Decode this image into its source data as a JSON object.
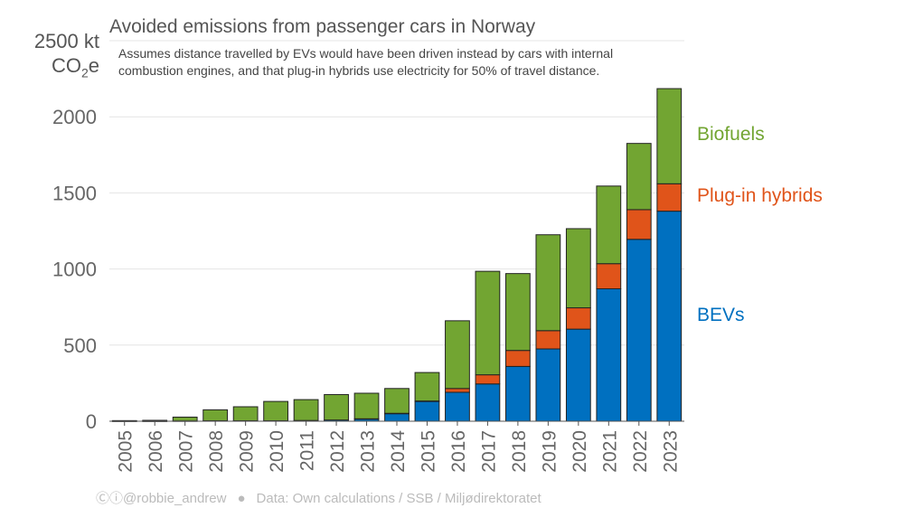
{
  "chart_data": {
    "type": "bar",
    "stacked": true,
    "title": "Avoided emissions from passenger cars in Norway",
    "subtitle": "Assumes distance travelled by EVs would have been driven instead by cars with internal combustion engines, and that plug-in hybrids use electricity for 50% of travel distance.",
    "ylabel_value": "2500 kt",
    "ylabel_unit_main": "CO",
    "ylabel_unit_sub": "2",
    "ylabel_unit_end": "e",
    "ylim": [
      0,
      2500
    ],
    "yticks": [
      0,
      500,
      1000,
      1500,
      2000
    ],
    "grid": true,
    "categories": [
      "2005",
      "2006",
      "2007",
      "2008",
      "2009",
      "2010",
      "2011",
      "2012",
      "2013",
      "2014",
      "2015",
      "2016",
      "2017",
      "2018",
      "2019",
      "2020",
      "2021",
      "2022",
      "2023"
    ],
    "series": [
      {
        "name": "BEVs",
        "color": "#0070C0",
        "values": [
          1,
          1,
          2,
          3,
          3,
          3,
          5,
          8,
          15,
          50,
          130,
          190,
          245,
          360,
          475,
          605,
          870,
          1195,
          1380
        ]
      },
      {
        "name": "Plug-in hybrids",
        "color": "#E0541A",
        "values": [
          0,
          0,
          0,
          0,
          0,
          0,
          0,
          0,
          1,
          2,
          3,
          25,
          60,
          105,
          120,
          140,
          165,
          195,
          180
        ]
      },
      {
        "name": "Biofuels",
        "color": "#72A532",
        "values": [
          3,
          5,
          25,
          72,
          92,
          127,
          137,
          167,
          168,
          163,
          187,
          445,
          680,
          505,
          630,
          520,
          510,
          435,
          625
        ]
      }
    ],
    "legend": [
      {
        "label": "Biofuels",
        "color": "#72A532"
      },
      {
        "label": "Plug-in hybrids",
        "color": "#E0541A"
      },
      {
        "label": "BEVs",
        "color": "#0070C0"
      }
    ]
  },
  "footer": {
    "handle": "@robbie_andrew",
    "license_icon": "cc-by-icon",
    "license_glyph": "Ⓒⓘ",
    "separator": "●",
    "source": "Data: Own calculations / SSB / Miljødirektoratet"
  }
}
